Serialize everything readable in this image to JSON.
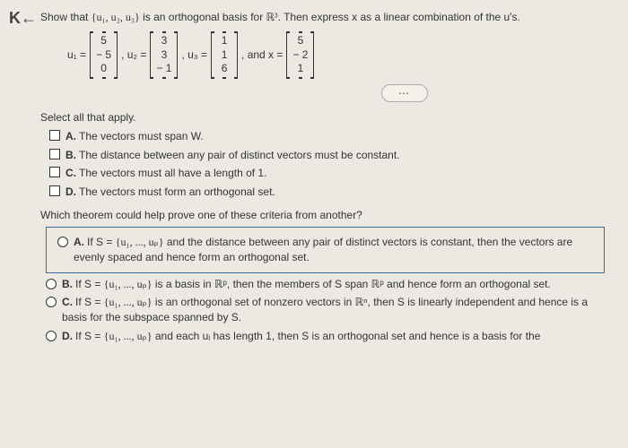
{
  "nav": {
    "back": "K"
  },
  "prompt": {
    "lead": "Show that ",
    "set": "{u₁, u₂, u₃}",
    "mid": " is an orthogonal basis for ",
    "space": "ℝ³",
    "tail": ". Then express x as a linear combination of the u's."
  },
  "vectors": {
    "u1": {
      "label": "u₁ =",
      "vals": [
        "5",
        "− 5",
        "0"
      ]
    },
    "u2": {
      "label": ", u₂ =",
      "vals": [
        "3",
        "3",
        "− 1"
      ]
    },
    "u3": {
      "label": ", u₃ =",
      "vals": [
        "1",
        "1",
        "6"
      ]
    },
    "x": {
      "label": ", and x =",
      "vals": [
        "5",
        "− 2",
        "1"
      ]
    }
  },
  "more": "⋯",
  "select_label": "Select all that apply.",
  "checks": {
    "A": {
      "letter": "A.",
      "text": "The vectors must span W."
    },
    "B": {
      "letter": "B.",
      "text": "The distance between any pair of distinct vectors must be constant."
    },
    "C": {
      "letter": "C.",
      "text": "The vectors must all have a length of 1."
    },
    "D": {
      "letter": "D.",
      "text": "The vectors must form an orthogonal set."
    }
  },
  "q2": "Which theorem could help prove one of these criteria from another?",
  "radios": {
    "A": {
      "letter": "A.",
      "pre": "If S = ",
      "set": "{u₁, ..., uₚ}",
      "text": " and the distance between any pair of distinct vectors is constant, then the vectors are evenly spaced and hence form an orthogonal set."
    },
    "B": {
      "letter": "B.",
      "pre": "If S = ",
      "set": "{u₁, ..., uₚ}",
      "text": " is a basis in ℝᵖ, then the members of S span ℝᵖ and hence form an orthogonal set."
    },
    "C": {
      "letter": "C.",
      "pre": "If S = ",
      "set": "{u₁, ..., uₚ}",
      "text": " is an orthogonal set of nonzero vectors in ℝⁿ, then S is linearly independent and hence is a basis for the subspace spanned by S."
    },
    "D": {
      "letter": "D.",
      "pre": "If S = ",
      "set": "{u₁, ..., uₚ}",
      "text": " and each uᵢ has length 1, then S is an orthogonal set and hence is a basis for the"
    }
  },
  "style": {
    "bg": "#ebe9e2",
    "highlight_border": "#3b6ea5",
    "text": "#333333"
  }
}
